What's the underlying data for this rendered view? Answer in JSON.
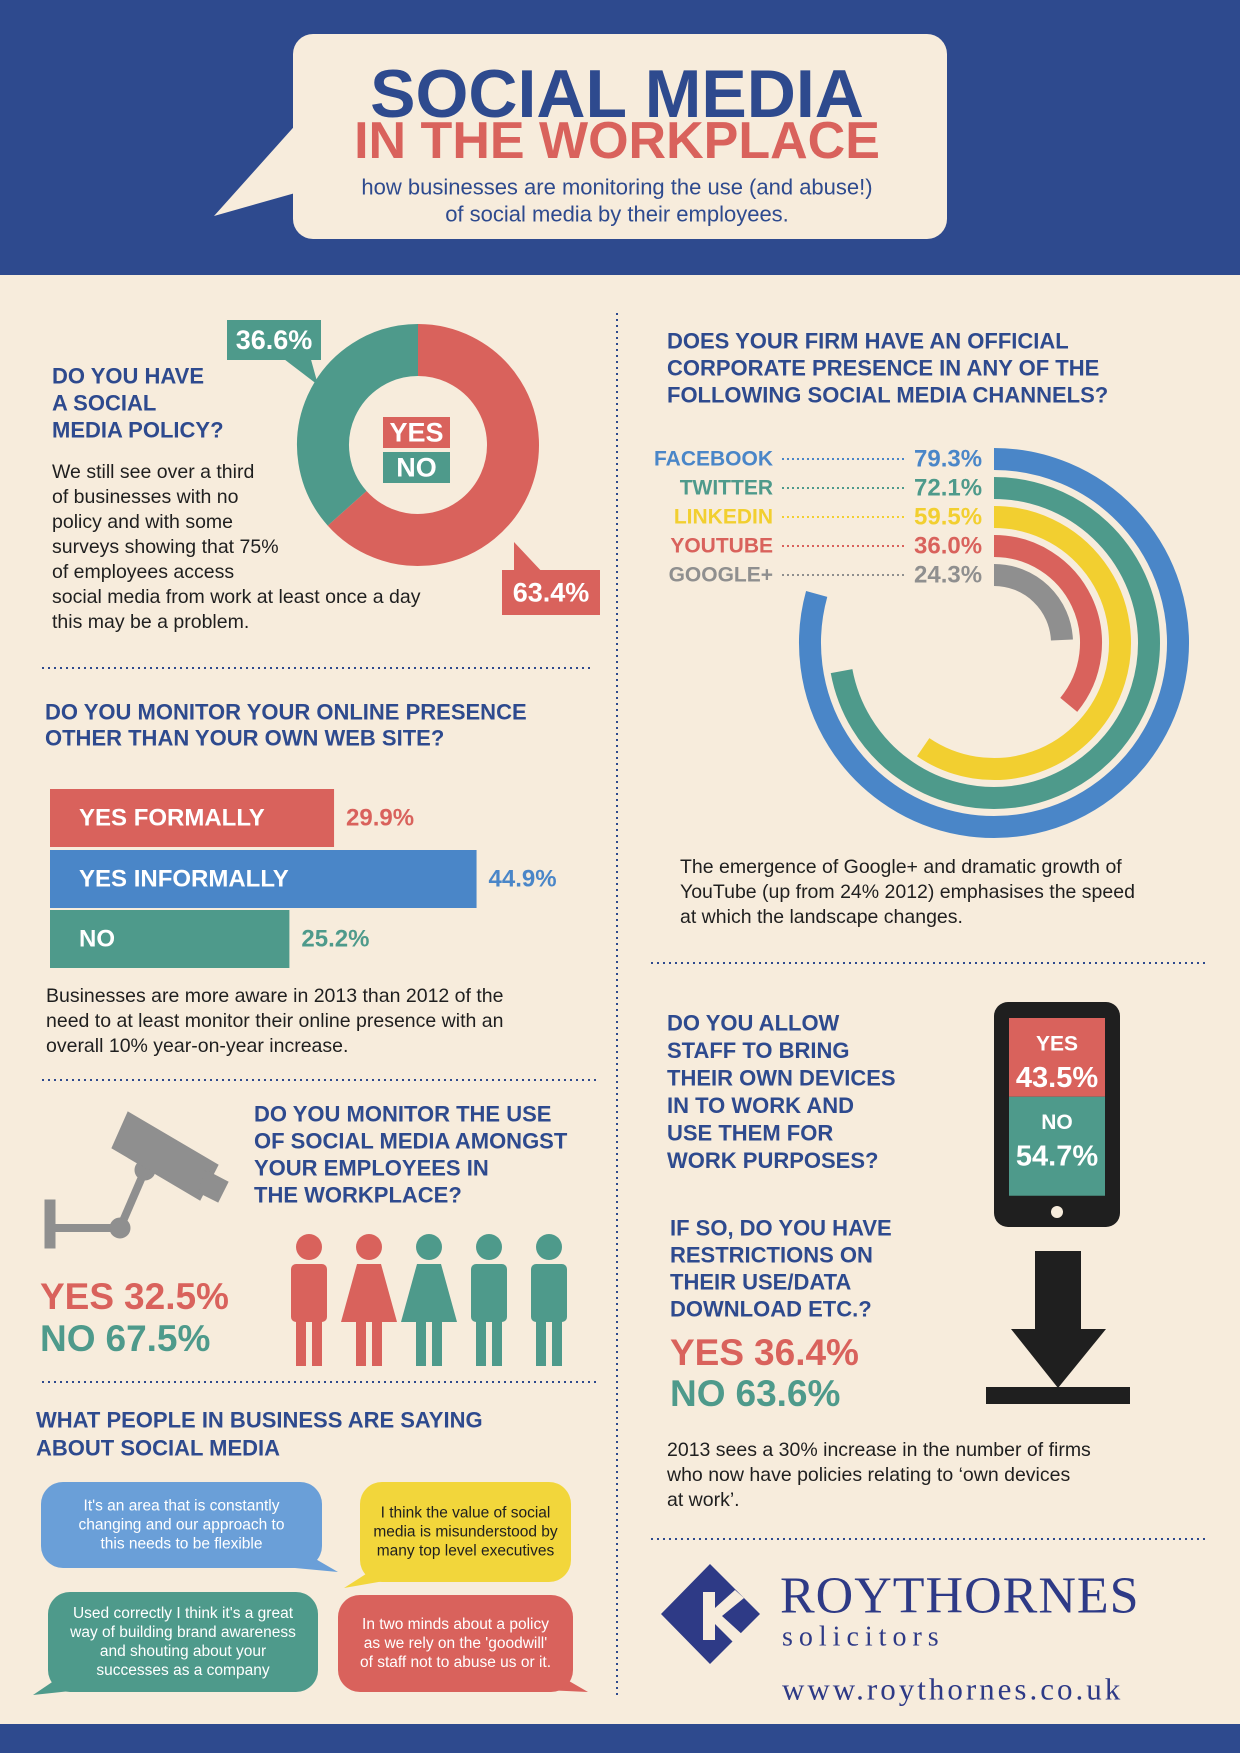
{
  "header": {
    "title": "SOCIAL MEDIA",
    "title_line2": "IN THE WORKPLACE",
    "subtitle": [
      "how businesses are monitoring the use (and abuse!)",
      "of social media by their employees."
    ]
  },
  "chart_data": [
    {
      "type": "donut",
      "title": [
        "DO YOU HAVE",
        "A SOCIAL",
        "MEDIA POLICY?"
      ],
      "categories": [
        "YES",
        "NO"
      ],
      "values": [
        63.4,
        36.6
      ],
      "value_labels": [
        "63.4%",
        "36.6%"
      ],
      "colors": [
        "#d9625c",
        "#4e9a8b"
      ],
      "note": [
        "We still see over a third",
        "of businesses with no",
        "policy and with some",
        "surveys showing that 75%",
        "of employees access",
        "social media from work at least once a day",
        "this may be a problem."
      ]
    },
    {
      "type": "bar",
      "title": [
        "DO YOU MONITOR YOUR ONLINE PRESENCE",
        "OTHER THAN YOUR OWN WEB SITE?"
      ],
      "categories": [
        "YES FORMALLY",
        "YES INFORMALLY",
        "NO"
      ],
      "values": [
        29.9,
        44.9,
        25.2
      ],
      "value_labels": [
        "29.9%",
        "44.9%",
        "25.2%"
      ],
      "colors": [
        "#d9625c",
        "#4a86c8",
        "#4e9a8b"
      ],
      "note": [
        "Businesses are more aware in 2013 than 2012 of the",
        "need to at least monitor their online presence with an",
        "overall 10% year-on-year increase."
      ]
    },
    {
      "type": "stat",
      "title": [
        "DO YOU MONITOR THE USE",
        "OF SOCIAL MEDIA AMONGST",
        "YOUR EMPLOYEES IN",
        "THE WORKPLACE?"
      ],
      "categories": [
        "YES",
        "NO"
      ],
      "values": [
        32.5,
        67.5
      ],
      "value_labels": [
        "32.5%",
        "67.5%"
      ],
      "colors": [
        "#d9625c",
        "#4e9a8b"
      ]
    },
    {
      "type": "radial",
      "title": [
        "DOES YOUR FIRM HAVE AN OFFICIAL",
        "CORPORATE PRESENCE IN ANY OF THE",
        "FOLLOWING SOCIAL MEDIA CHANNELS?"
      ],
      "categories": [
        "FACEBOOK",
        "TWITTER",
        "LINKEDIN",
        "YOUTUBE",
        "GOOGLE+"
      ],
      "values": [
        79.3,
        72.1,
        59.5,
        36.0,
        24.3
      ],
      "value_labels": [
        "79.3%",
        "72.1%",
        "59.5%",
        "36.0%",
        "24.3%"
      ],
      "colors": [
        "#4a86c8",
        "#4e9a8b",
        "#f2cf30",
        "#d9625c",
        "#8f8f8f"
      ],
      "note": [
        "The emergence of Google+ and dramatic growth of",
        "YouTube (up from 24% 2012) emphasises the speed",
        "at which the landscape changes."
      ]
    },
    {
      "type": "phone",
      "title": [
        "DO YOU ALLOW",
        "STAFF TO BRING",
        "THEIR OWN DEVICES",
        "IN TO WORK AND",
        "USE THEM FOR",
        "WORK PURPOSES?"
      ],
      "categories": [
        "YES",
        "NO"
      ],
      "values": [
        43.5,
        54.7
      ],
      "value_labels": [
        "43.5%",
        "54.7%"
      ],
      "colors": [
        "#d9625c",
        "#4e9a8b"
      ]
    },
    {
      "type": "stat",
      "title": [
        "IF SO, DO YOU HAVE",
        "RESTRICTIONS ON",
        "THEIR USE/DATA",
        "DOWNLOAD ETC.?"
      ],
      "categories": [
        "YES",
        "NO"
      ],
      "values": [
        36.4,
        63.6
      ],
      "value_labels": [
        "36.4%",
        "63.6%"
      ],
      "colors": [
        "#d9625c",
        "#4e9a8b"
      ],
      "note": [
        "2013 sees a 30% increase in the number of firms",
        "who now have policies relating to ‘own devices",
        "at work’."
      ]
    }
  ],
  "quotes": {
    "title": [
      "WHAT PEOPLE IN BUSINESS ARE SAYING",
      "ABOUT SOCIAL MEDIA"
    ],
    "items": [
      [
        "It's an area that is constantly",
        "changing and our approach to",
        "this needs to be flexible"
      ],
      [
        "I think the value of social",
        "media is misunderstood by",
        "many top level executives"
      ],
      [
        "Used correctly I think it's a great",
        "way of building brand awareness",
        "and shouting about your",
        "successes as a company"
      ],
      [
        "In two minds about a policy",
        "as we rely on the 'goodwill'",
        "of staff not to abuse us or it."
      ]
    ]
  },
  "footer": {
    "company": "ROYTHORNES",
    "tagline": "solicitors",
    "url": "www.roythornes.co.uk"
  }
}
